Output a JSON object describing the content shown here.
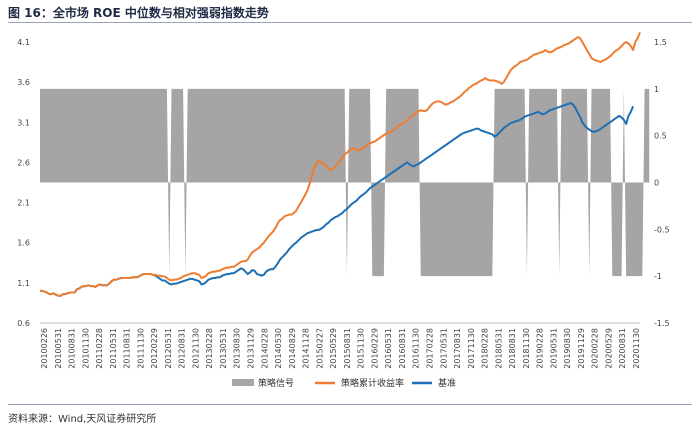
{
  "title": "图 16：全市场 ROE 中位数与相对强弱指数走势",
  "source": "资料来源：Wind,天风证券研究所",
  "chart_data": {
    "type": "line",
    "title": "图 16：全市场 ROE 中位数与相对强弱指数走势",
    "xlabel": "",
    "ylabel": "",
    "y_left": {
      "min": 0.6,
      "max": 4.1,
      "ticks": [
        "0.6",
        "1.1",
        "1.6",
        "2.1",
        "2.6",
        "3.1",
        "3.6",
        "4.1"
      ]
    },
    "y_right": {
      "min": -1.5,
      "max": 1.5,
      "ticks": [
        "-1.5",
        "-1",
        "-0.5",
        "0",
        "0.5",
        "1",
        "1.5"
      ]
    },
    "grid": false,
    "legend_position": "bottom",
    "x_tick_labels": [
      "20100226",
      "20100531",
      "20100831",
      "20101130",
      "20110228",
      "20110531",
      "20110831",
      "20111130",
      "20120229",
      "20120531",
      "20120831",
      "20121130",
      "20130228",
      "20130531",
      "20130830",
      "20131129",
      "20140228",
      "20140530",
      "20140829",
      "20141128",
      "20150227",
      "20150529",
      "20150831",
      "20151130",
      "20160229",
      "20160531",
      "20160831",
      "20161130",
      "20170228",
      "20170531",
      "20170831",
      "20171130",
      "20180228",
      "20180531",
      "20180831",
      "20181130",
      "20190228",
      "20190531",
      "20190830",
      "20191129",
      "20200228",
      "20200529",
      "20200831",
      "20201130"
    ],
    "series": [
      {
        "name": "策略信号",
        "axis": "right",
        "kind": "area",
        "color": "#a6a4a4",
        "values": [
          1,
          1,
          1,
          1,
          1,
          1,
          1,
          1,
          1,
          1,
          1,
          1,
          1,
          1,
          1,
          1,
          1,
          1,
          1,
          1,
          1,
          1,
          1,
          1,
          1,
          1,
          1,
          1,
          1,
          1,
          1,
          1,
          1,
          1,
          1,
          1,
          1,
          1,
          1,
          1,
          1,
          1,
          1,
          1,
          1,
          1,
          1,
          1,
          1,
          1,
          1,
          1,
          1,
          1,
          1,
          1,
          -1,
          1,
          1,
          1,
          1,
          1,
          1,
          -1,
          1,
          1,
          1,
          1,
          1,
          1,
          1,
          1,
          1,
          1,
          1,
          1,
          1,
          1,
          1,
          1,
          1,
          1,
          1,
          1,
          1,
          1,
          1,
          1,
          1,
          1,
          1,
          1,
          1,
          1,
          1,
          1,
          1,
          1,
          1,
          1,
          1,
          1,
          1,
          1,
          1,
          1,
          1,
          1,
          1,
          1,
          1,
          1,
          1,
          1,
          1,
          1,
          1,
          1,
          1,
          1,
          1,
          1,
          1,
          1,
          1,
          1,
          1,
          1,
          1,
          1,
          1,
          1,
          1,
          -1,
          1,
          1,
          1,
          1,
          1,
          1,
          1,
          1,
          1,
          1,
          -1,
          -1,
          -1,
          -1,
          -1,
          -1,
          1,
          1,
          1,
          1,
          1,
          1,
          1,
          1,
          1,
          1,
          1,
          1,
          1,
          1,
          1,
          -1,
          -1,
          -1,
          -1,
          -1,
          -1,
          -1,
          -1,
          -1,
          -1,
          -1,
          -1,
          -1,
          -1,
          -1,
          -1,
          -1,
          -1,
          -1,
          -1,
          -1,
          -1,
          -1,
          -1,
          -1,
          -1,
          -1,
          -1,
          -1,
          -1,
          -1,
          -1,
          1,
          1,
          1,
          1,
          1,
          1,
          1,
          1,
          1,
          1,
          1,
          1,
          1,
          1,
          -1,
          1,
          1,
          1,
          1,
          1,
          1,
          1,
          1,
          1,
          1,
          1,
          1,
          1,
          -1,
          1,
          1,
          1,
          1,
          1,
          1,
          1,
          1,
          1,
          1,
          1,
          1,
          -1,
          1,
          1,
          1,
          1,
          1,
          1,
          1,
          1,
          1,
          -1,
          -1,
          -1,
          -1,
          -1,
          1,
          -1,
          -1,
          -1,
          -1,
          -1,
          -1,
          -1,
          -1,
          1,
          1,
          1
        ]
      },
      {
        "name": "策略累计收益率",
        "axis": "left",
        "color": "#ed7d31",
        "values": [
          1.0,
          1.0,
          0.99,
          0.98,
          0.96,
          0.96,
          0.97,
          0.95,
          0.94,
          0.94,
          0.96,
          0.96,
          0.97,
          0.98,
          0.98,
          0.98,
          1.02,
          1.03,
          1.05,
          1.06,
          1.06,
          1.07,
          1.06,
          1.06,
          1.05,
          1.07,
          1.08,
          1.07,
          1.07,
          1.07,
          1.09,
          1.12,
          1.14,
          1.14,
          1.15,
          1.16,
          1.16,
          1.16,
          1.16,
          1.16,
          1.17,
          1.17,
          1.17,
          1.18,
          1.2,
          1.21,
          1.21,
          1.21,
          1.21,
          1.2,
          1.2,
          1.19,
          1.19,
          1.18,
          1.18,
          1.16,
          1.14,
          1.13,
          1.14,
          1.14,
          1.15,
          1.16,
          1.18,
          1.19,
          1.2,
          1.21,
          1.22,
          1.22,
          1.21,
          1.2,
          1.16,
          1.17,
          1.19,
          1.22,
          1.23,
          1.24,
          1.24,
          1.25,
          1.25,
          1.27,
          1.28,
          1.29,
          1.29,
          1.3,
          1.3,
          1.32,
          1.34,
          1.36,
          1.37,
          1.37,
          1.39,
          1.44,
          1.48,
          1.5,
          1.52,
          1.54,
          1.57,
          1.6,
          1.64,
          1.68,
          1.71,
          1.74,
          1.78,
          1.84,
          1.88,
          1.9,
          1.93,
          1.94,
          1.95,
          1.95,
          1.97,
          2.0,
          2.05,
          2.1,
          2.15,
          2.2,
          2.26,
          2.35,
          2.45,
          2.55,
          2.6,
          2.62,
          2.6,
          2.58,
          2.55,
          2.52,
          2.51,
          2.52,
          2.55,
          2.58,
          2.62,
          2.66,
          2.7,
          2.72,
          2.75,
          2.77,
          2.78,
          2.76,
          2.75,
          2.76,
          2.78,
          2.8,
          2.82,
          2.84,
          2.85,
          2.86,
          2.88,
          2.9,
          2.92,
          2.94,
          2.96,
          2.97,
          2.98,
          3.0,
          3.02,
          3.05,
          3.07,
          3.08,
          3.1,
          3.12,
          3.15,
          3.18,
          3.2,
          3.22,
          3.24,
          3.25,
          3.24,
          3.24,
          3.26,
          3.3,
          3.33,
          3.35,
          3.36,
          3.36,
          3.35,
          3.33,
          3.32,
          3.33,
          3.35,
          3.36,
          3.38,
          3.4,
          3.42,
          3.45,
          3.48,
          3.5,
          3.53,
          3.55,
          3.57,
          3.58,
          3.6,
          3.62,
          3.63,
          3.65,
          3.63,
          3.62,
          3.62,
          3.62,
          3.61,
          3.6,
          3.58,
          3.6,
          3.65,
          3.7,
          3.75,
          3.78,
          3.8,
          3.82,
          3.85,
          3.86,
          3.87,
          3.88,
          3.9,
          3.92,
          3.94,
          3.95,
          3.96,
          3.97,
          3.98,
          4.0,
          3.98,
          3.97,
          3.98,
          4.0,
          4.02,
          4.03,
          4.04,
          4.06,
          4.07,
          4.08,
          4.1,
          4.12,
          4.14,
          4.16,
          4.15,
          4.1,
          4.05,
          4.0,
          3.95,
          3.9,
          3.88,
          3.87,
          3.86,
          3.85,
          3.87,
          3.88,
          3.9,
          3.92,
          3.95,
          3.98,
          4.0,
          4.02,
          4.05,
          4.08,
          4.1,
          4.08,
          4.05,
          4.0,
          4.1,
          4.15,
          4.22
        ]
      },
      {
        "name": "基准",
        "axis": "left",
        "color": "#1f6fb5",
        "values": [
          1.0,
          1.0,
          0.99,
          0.98,
          0.96,
          0.96,
          0.97,
          0.95,
          0.94,
          0.94,
          0.96,
          0.96,
          0.97,
          0.98,
          0.98,
          0.98,
          1.02,
          1.03,
          1.05,
          1.06,
          1.06,
          1.07,
          1.06,
          1.06,
          1.05,
          1.07,
          1.08,
          1.07,
          1.07,
          1.07,
          1.09,
          1.12,
          1.14,
          1.14,
          1.15,
          1.16,
          1.16,
          1.16,
          1.16,
          1.16,
          1.17,
          1.17,
          1.17,
          1.18,
          1.2,
          1.21,
          1.21,
          1.21,
          1.21,
          1.2,
          1.19,
          1.17,
          1.15,
          1.13,
          1.13,
          1.11,
          1.09,
          1.08,
          1.09,
          1.09,
          1.1,
          1.11,
          1.12,
          1.13,
          1.14,
          1.15,
          1.15,
          1.14,
          1.13,
          1.12,
          1.08,
          1.09,
          1.11,
          1.14,
          1.15,
          1.16,
          1.16,
          1.17,
          1.17,
          1.19,
          1.2,
          1.21,
          1.21,
          1.22,
          1.22,
          1.24,
          1.26,
          1.28,
          1.27,
          1.24,
          1.21,
          1.23,
          1.26,
          1.25,
          1.21,
          1.2,
          1.19,
          1.2,
          1.24,
          1.26,
          1.27,
          1.27,
          1.3,
          1.34,
          1.39,
          1.42,
          1.45,
          1.48,
          1.52,
          1.55,
          1.58,
          1.6,
          1.63,
          1.66,
          1.68,
          1.7,
          1.72,
          1.73,
          1.74,
          1.75,
          1.76,
          1.76,
          1.78,
          1.8,
          1.83,
          1.85,
          1.88,
          1.9,
          1.92,
          1.93,
          1.95,
          1.97,
          2.0,
          2.02,
          2.05,
          2.08,
          2.1,
          2.12,
          2.15,
          2.18,
          2.2,
          2.22,
          2.25,
          2.28,
          2.3,
          2.32,
          2.34,
          2.36,
          2.38,
          2.4,
          2.42,
          2.44,
          2.46,
          2.48,
          2.5,
          2.52,
          2.54,
          2.56,
          2.58,
          2.6,
          2.58,
          2.56,
          2.55,
          2.57,
          2.58,
          2.6,
          2.62,
          2.64,
          2.66,
          2.68,
          2.7,
          2.72,
          2.74,
          2.76,
          2.78,
          2.8,
          2.82,
          2.84,
          2.86,
          2.88,
          2.9,
          2.92,
          2.94,
          2.96,
          2.97,
          2.98,
          2.99,
          3.0,
          3.01,
          3.02,
          3.02,
          3.0,
          2.99,
          2.98,
          2.97,
          2.96,
          2.95,
          2.92,
          2.94,
          2.97,
          3.0,
          3.03,
          3.05,
          3.07,
          3.09,
          3.1,
          3.11,
          3.12,
          3.13,
          3.15,
          3.17,
          3.18,
          3.19,
          3.2,
          3.21,
          3.22,
          3.23,
          3.21,
          3.2,
          3.21,
          3.23,
          3.25,
          3.26,
          3.27,
          3.28,
          3.29,
          3.3,
          3.31,
          3.32,
          3.33,
          3.34,
          3.32,
          3.28,
          3.22,
          3.17,
          3.1,
          3.06,
          3.03,
          3.01,
          2.99,
          2.98,
          2.99,
          3.0,
          3.02,
          3.04,
          3.06,
          3.08,
          3.1,
          3.12,
          3.14,
          3.16,
          3.18,
          3.16,
          3.13,
          3.08,
          3.18,
          3.23,
          3.3
        ]
      }
    ]
  }
}
